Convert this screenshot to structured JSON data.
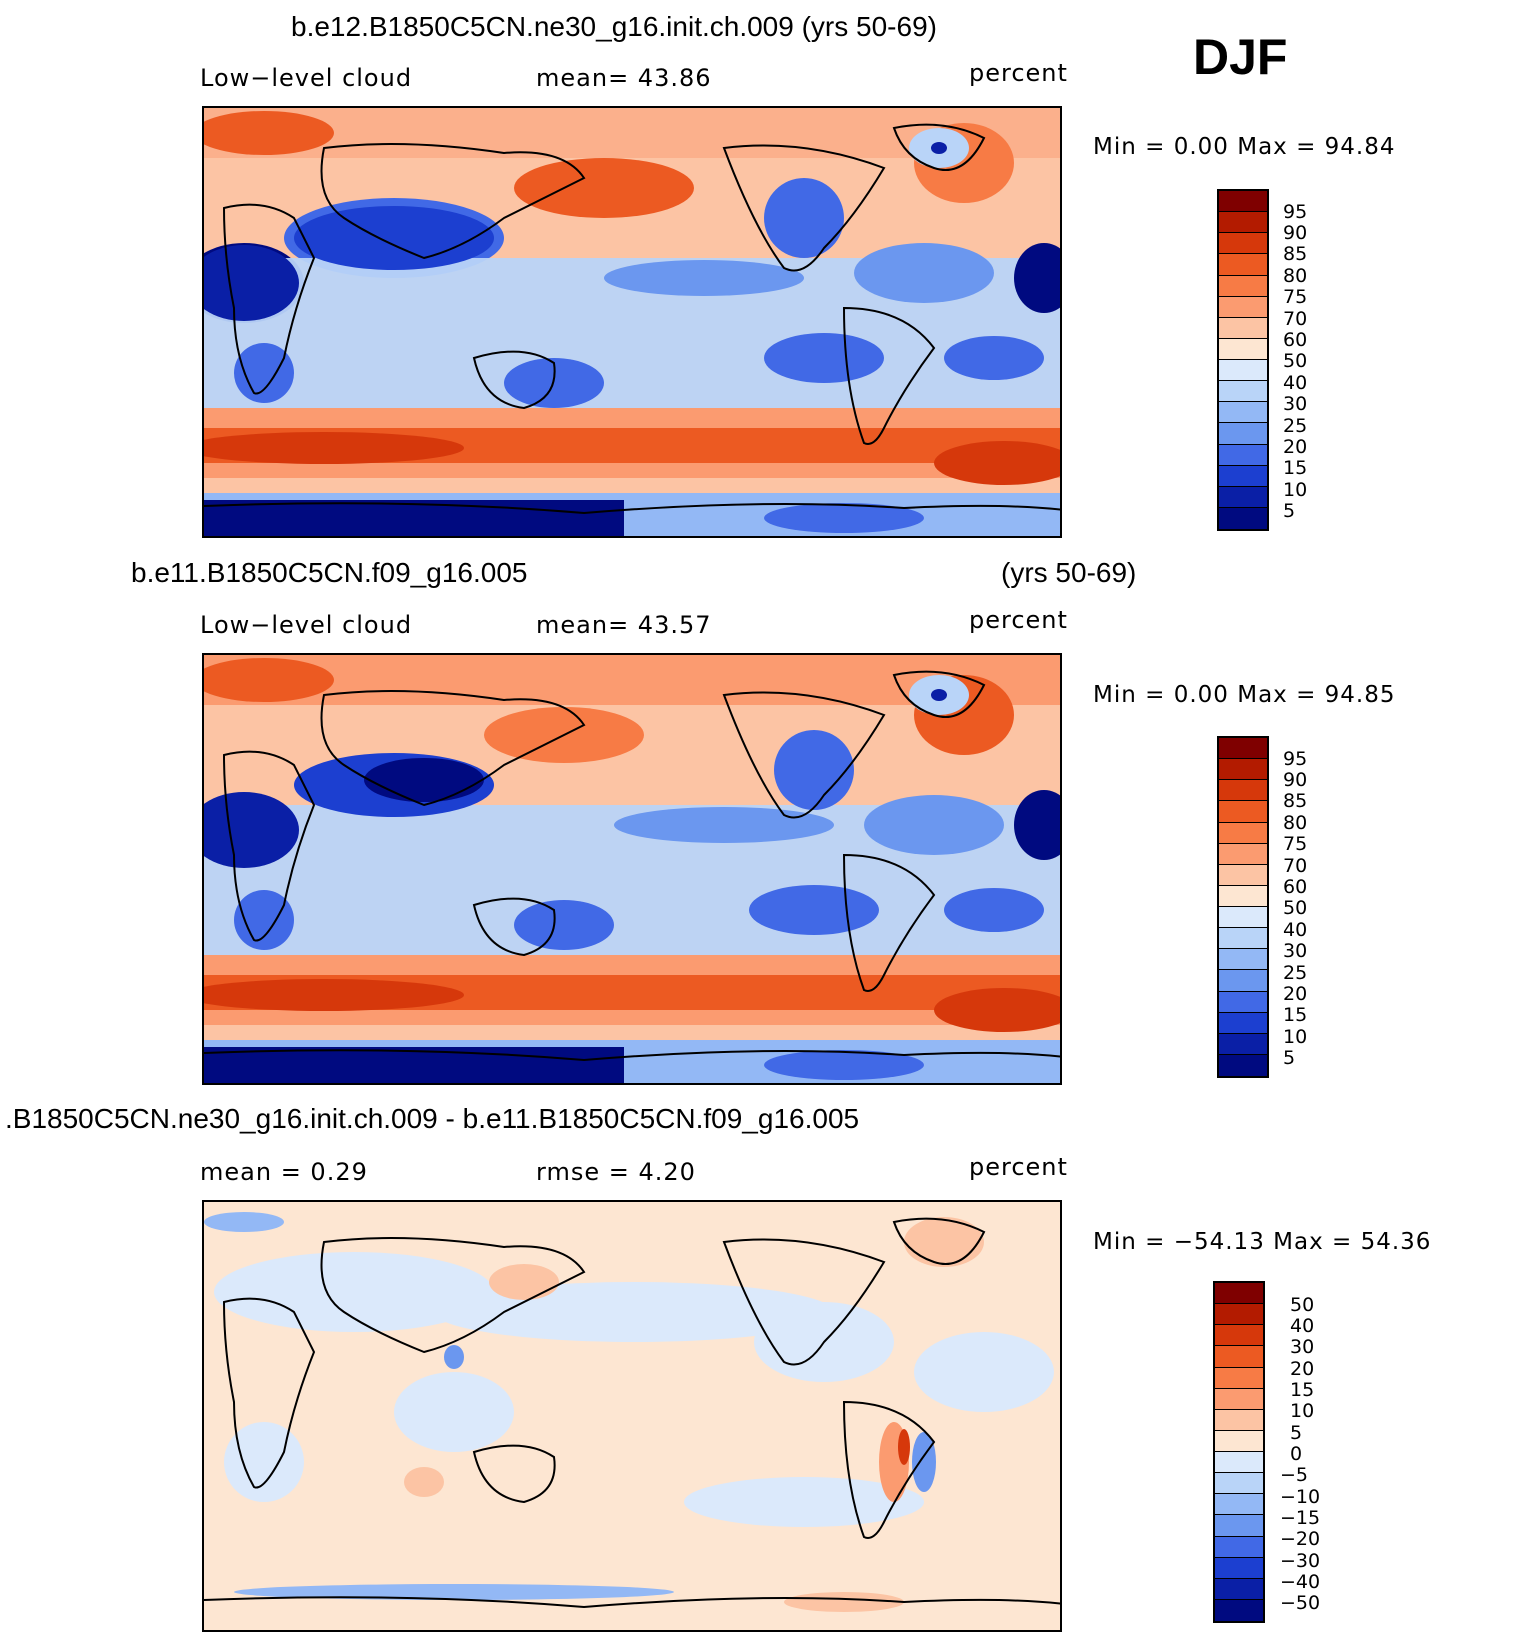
{
  "season": "DJF",
  "panels": [
    {
      "title": "b.e12.B1850C5CN.ne30_g16.init.ch.009 (yrs 50-69)",
      "left_label": "Low−level  cloud",
      "center_label": "mean=   43.86",
      "right_label": "percent",
      "minmax": "Min  =     0.00  Max  =    94.84",
      "colorbar": {
        "labels": [
          "95",
          "90",
          "85",
          "80",
          "75",
          "70",
          "60",
          "50",
          "40",
          "30",
          "25",
          "20",
          "15",
          "10",
          "5"
        ],
        "colors": [
          "#7f0000",
          "#b31b00",
          "#d6380b",
          "#ec5a22",
          "#f77b45",
          "#fb9b70",
          "#fcc4a4",
          "#fde6d2",
          "#dbe9fb",
          "#b9d4f8",
          "#93b8f5",
          "#6b97ef",
          "#4169e6",
          "#1c3fd0",
          "#0a1fa6",
          "#000a80"
        ]
      }
    },
    {
      "title_left": "b.e11.B1850C5CN.f09_g16.005",
      "title_right": "(yrs 50-69)",
      "left_label": "Low−level  cloud",
      "center_label": "mean=   43.57",
      "right_label": "percent",
      "minmax": "Min  =     0.00  Max  =    94.85",
      "colorbar": {
        "labels": [
          "95",
          "90",
          "85",
          "80",
          "75",
          "70",
          "60",
          "50",
          "40",
          "30",
          "25",
          "20",
          "15",
          "10",
          "5"
        ],
        "colors": [
          "#7f0000",
          "#b31b00",
          "#d6380b",
          "#ec5a22",
          "#f77b45",
          "#fb9b70",
          "#fcc4a4",
          "#fde6d2",
          "#dbe9fb",
          "#b9d4f8",
          "#93b8f5",
          "#6b97ef",
          "#4169e6",
          "#1c3fd0",
          "#0a1fa6",
          "#000a80"
        ]
      }
    },
    {
      "title": ".B1850C5CN.ne30_g16.init.ch.009 - b.e11.B1850C5CN.f09_g16.005",
      "left_label": "mean  =      0.29",
      "center_label": "rmse  =      4.20",
      "right_label": "percent",
      "minmax": "Min  =  −54.13  Max  =    54.36",
      "colorbar": {
        "labels": [
          "50",
          "40",
          "30",
          "20",
          "15",
          "10",
          "5",
          "0",
          "−5",
          "−10",
          "−15",
          "−20",
          "−30",
          "−40",
          "−50"
        ],
        "colors": [
          "#7f0000",
          "#b31b00",
          "#d6380b",
          "#ec5a22",
          "#f77b45",
          "#fb9b70",
          "#fcc4a4",
          "#fde6d2",
          "#dbe9fb",
          "#b9d4f8",
          "#93b8f5",
          "#6b97ef",
          "#4169e6",
          "#1c3fd0",
          "#0a1fa6",
          "#000a80"
        ]
      }
    }
  ]
}
